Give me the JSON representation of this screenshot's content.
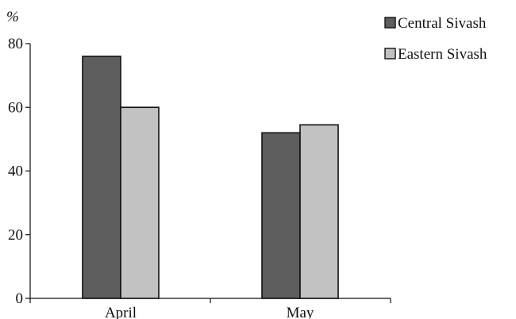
{
  "chart_data": {
    "type": "bar",
    "ylabel": "%",
    "categories": [
      "April",
      "May"
    ],
    "series": [
      {
        "name": "Central Sivash",
        "values": [
          76,
          52
        ],
        "color": "#5e5e5e"
      },
      {
        "name": "Eastern Sivash",
        "values": [
          60,
          54.5
        ],
        "color": "#c2c2c2"
      }
    ],
    "ylim": [
      0,
      80
    ],
    "yticks": [
      0,
      20,
      40,
      60,
      80
    ],
    "grid": false,
    "legend_position": "top-right"
  }
}
